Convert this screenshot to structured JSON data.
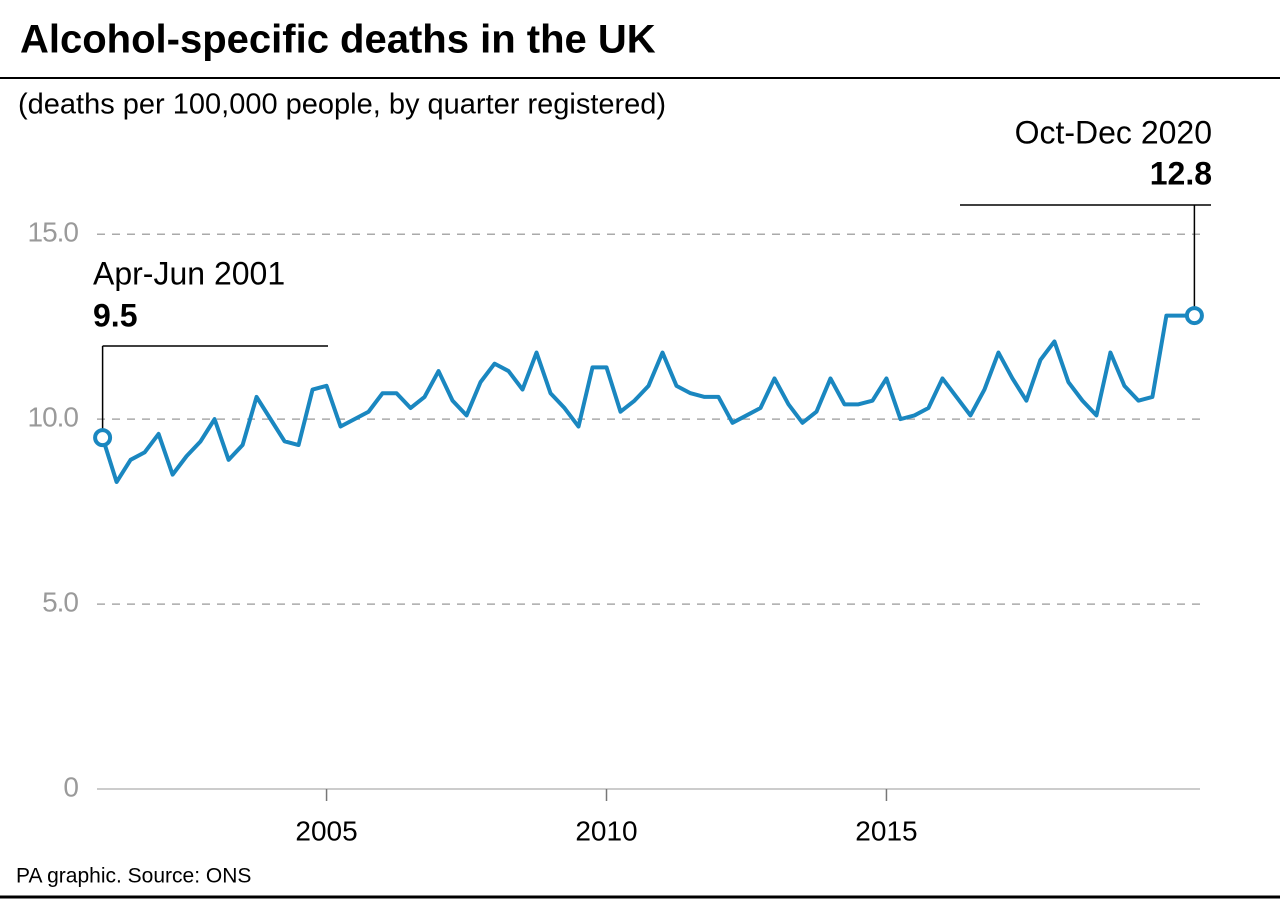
{
  "chart_data": {
    "type": "line",
    "title": "Alcohol-specific deaths in the UK",
    "subtitle": "(deaths per 100,000 people, by quarter registered)",
    "source": "PA graphic. Source: ONS",
    "x": [
      2001,
      2001.25,
      2001.5,
      2001.75,
      2002,
      2002.25,
      2002.5,
      2002.75,
      2003,
      2003.25,
      2003.5,
      2003.75,
      2004,
      2004.25,
      2004.5,
      2004.75,
      2005,
      2005.25,
      2005.5,
      2005.75,
      2006,
      2006.25,
      2006.5,
      2006.75,
      2007,
      2007.25,
      2007.5,
      2007.75,
      2008,
      2008.25,
      2008.5,
      2008.75,
      2009,
      2009.25,
      2009.5,
      2009.75,
      2010,
      2010.25,
      2010.5,
      2010.75,
      2011,
      2011.25,
      2011.5,
      2011.75,
      2012,
      2012.25,
      2012.5,
      2012.75,
      2013,
      2013.25,
      2013.5,
      2013.75,
      2014,
      2014.25,
      2014.5,
      2014.75,
      2015,
      2015.25,
      2015.5,
      2015.75,
      2016,
      2016.25,
      2016.5,
      2016.75,
      2017,
      2017.25,
      2017.5,
      2017.75,
      2018,
      2018.25,
      2018.5,
      2018.75,
      2019,
      2019.25,
      2019.5,
      2019.75,
      2020,
      2020.25,
      2020.5
    ],
    "values": [
      9.5,
      8.3,
      8.9,
      9.1,
      9.6,
      8.5,
      9.0,
      9.4,
      10.0,
      8.9,
      9.3,
      10.6,
      10.0,
      9.4,
      9.3,
      10.8,
      10.9,
      9.8,
      10.0,
      10.2,
      10.7,
      10.7,
      10.3,
      10.6,
      11.3,
      10.5,
      10.1,
      11.0,
      11.5,
      11.3,
      10.8,
      11.8,
      10.7,
      10.3,
      9.8,
      11.4,
      11.4,
      10.2,
      10.5,
      10.9,
      11.8,
      10.9,
      10.7,
      10.6,
      10.6,
      9.9,
      10.1,
      10.3,
      11.1,
      10.4,
      9.9,
      10.2,
      11.1,
      10.4,
      10.4,
      10.5,
      11.1,
      10.0,
      10.1,
      10.3,
      11.1,
      10.6,
      10.1,
      10.8,
      11.8,
      11.1,
      10.5,
      11.6,
      12.1,
      11.0,
      10.5,
      10.1,
      11.8,
      10.9,
      10.5,
      10.6,
      12.8,
      12.8,
      12.8
    ],
    "color": "#1a87c0",
    "xlim": [
      2000.9,
      2020.6
    ],
    "xticks": [
      2005,
      2010,
      2015
    ],
    "ylim": [
      0,
      15.6
    ],
    "yticks": [
      0,
      {
        "value": 5,
        "label": "5.0"
      },
      {
        "value": 10,
        "label": "10.0"
      },
      {
        "value": 15,
        "label": "15.0"
      }
    ],
    "grid": true,
    "annotations": [
      {
        "text": "Apr-Jun 2001",
        "value": 9.5
      },
      {
        "text": "Oct-Dec 2020",
        "value": 12.8
      }
    ]
  }
}
